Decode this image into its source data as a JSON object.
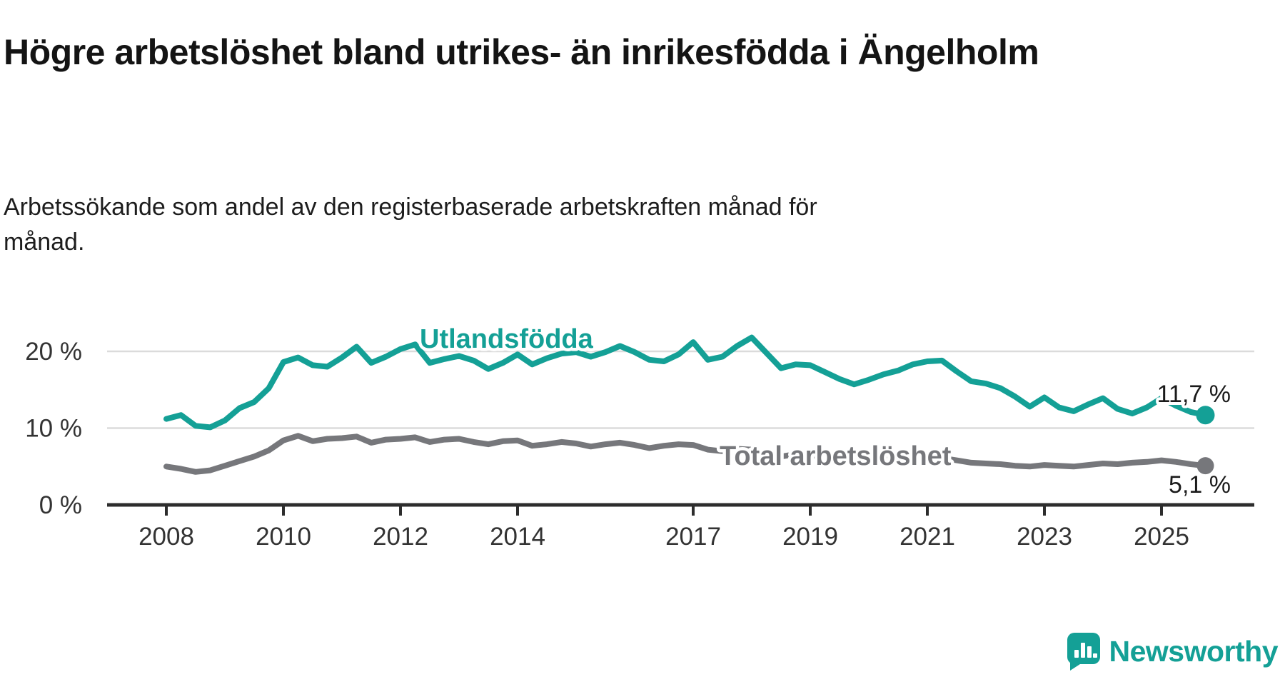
{
  "header": {
    "title": "Högre arbetslöshet bland utrikes- än inrikesfödda i Ängelholm",
    "subtitle": "Arbetssökande som andel av den registerbaserade arbetskraften månad för månad."
  },
  "chart_data": {
    "type": "line",
    "title": "Högre arbetslöshet bland utrikes- än inrikesfödda i Ängelholm",
    "subtitle": "Arbetssökande som andel av den registerbaserade arbetskraften månad för månad.",
    "xlabel": "",
    "ylabel": "",
    "grid": "horizontal",
    "legend_position": "inline-on-line",
    "xlim": [
      2008,
      2026
    ],
    "ylim": [
      0,
      24
    ],
    "x_ticks": [
      {
        "year": 2008,
        "label": "2008"
      },
      {
        "year": 2010,
        "label": "2010"
      },
      {
        "year": 2012,
        "label": "2012"
      },
      {
        "year": 2014,
        "label": "2014"
      },
      {
        "year": 2017,
        "label": "2017"
      },
      {
        "year": 2019,
        "label": "2019"
      },
      {
        "year": 2021,
        "label": "2021"
      },
      {
        "year": 2023,
        "label": "2023"
      },
      {
        "year": 2025,
        "label": "2025"
      }
    ],
    "y_ticks": [
      {
        "value": 0,
        "label": "0 %"
      },
      {
        "value": 10,
        "label": "10 %"
      },
      {
        "value": 20,
        "label": "20 %"
      }
    ],
    "x_quarterly_years": [
      2008.0,
      2008.25,
      2008.5,
      2008.75,
      2009.0,
      2009.25,
      2009.5,
      2009.75,
      2010.0,
      2010.25,
      2010.5,
      2010.75,
      2011.0,
      2011.25,
      2011.5,
      2011.75,
      2012.0,
      2012.25,
      2012.5,
      2012.75,
      2013.0,
      2013.25,
      2013.5,
      2013.75,
      2014.0,
      2014.25,
      2014.5,
      2014.75,
      2015.0,
      2015.25,
      2015.5,
      2015.75,
      2016.0,
      2016.25,
      2016.5,
      2016.75,
      2017.0,
      2017.25,
      2017.5,
      2017.75,
      2018.0,
      2018.25,
      2018.5,
      2018.75,
      2019.0,
      2019.25,
      2019.5,
      2019.75,
      2020.0,
      2020.25,
      2020.5,
      2020.75,
      2021.0,
      2021.25,
      2021.5,
      2021.75,
      2022.0,
      2022.25,
      2022.5,
      2022.75,
      2023.0,
      2023.25,
      2023.5,
      2023.75,
      2024.0,
      2024.25,
      2024.5,
      2024.75,
      2025.0,
      2025.25,
      2025.5,
      2025.75
    ],
    "series": [
      {
        "name": "Utlandsfödda",
        "color": "#14A096",
        "end_value_label": "11,7 %",
        "end_value": 11.7,
        "values": [
          11.2,
          11.7,
          10.3,
          10.1,
          11.0,
          12.6,
          13.4,
          15.2,
          18.6,
          19.2,
          18.2,
          18.0,
          19.2,
          20.6,
          18.5,
          19.3,
          20.3,
          20.9,
          18.5,
          19.0,
          19.4,
          18.8,
          17.7,
          18.5,
          19.6,
          18.3,
          19.1,
          19.7,
          19.9,
          19.3,
          19.9,
          20.7,
          19.9,
          18.9,
          18.7,
          19.6,
          21.2,
          18.9,
          19.3,
          20.7,
          21.8,
          19.8,
          17.8,
          18.3,
          18.2,
          17.3,
          16.4,
          15.7,
          16.3,
          17.0,
          17.5,
          18.3,
          18.7,
          18.8,
          17.4,
          16.1,
          15.8,
          15.2,
          14.1,
          12.8,
          14.0,
          12.7,
          12.2,
          13.1,
          13.9,
          12.5,
          11.9,
          12.7,
          13.9,
          12.9,
          12.1,
          11.7
        ]
      },
      {
        "name": "Total arbetslöshet",
        "color": "#76777B",
        "end_value_label": "5,1 %",
        "end_value": 5.1,
        "values": [
          5.0,
          4.7,
          4.3,
          4.5,
          5.1,
          5.7,
          6.3,
          7.1,
          8.4,
          9.0,
          8.3,
          8.6,
          8.7,
          8.9,
          8.1,
          8.5,
          8.6,
          8.8,
          8.2,
          8.5,
          8.6,
          8.2,
          7.9,
          8.3,
          8.4,
          7.7,
          7.9,
          8.2,
          8.0,
          7.6,
          7.9,
          8.1,
          7.8,
          7.4,
          7.7,
          7.9,
          7.8,
          7.2,
          7.0,
          7.3,
          7.2,
          6.7,
          6.3,
          6.6,
          6.5,
          6.2,
          6.0,
          5.9,
          6.1,
          6.4,
          6.6,
          6.6,
          6.4,
          6.1,
          5.8,
          5.5,
          5.4,
          5.3,
          5.1,
          5.0,
          5.2,
          5.1,
          5.0,
          5.2,
          5.4,
          5.3,
          5.5,
          5.6,
          5.8,
          5.6,
          5.3,
          5.1
        ]
      }
    ],
    "colors": {
      "axis": "#2D2D2D",
      "gridline": "#DBDBDB",
      "tick_text": "#333333",
      "value_label_text": "#1A1A1A"
    }
  },
  "footer": {
    "brand": "Newsworthy",
    "brand_color": "#14A096",
    "logo_icon": "bar-chart-speech-bubble-icon"
  }
}
